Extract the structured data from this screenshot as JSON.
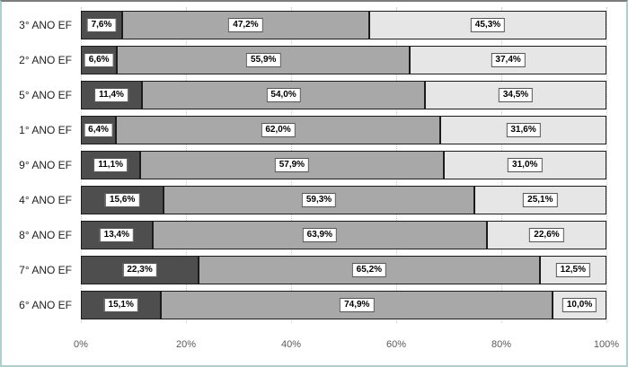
{
  "chart_data": {
    "type": "bar",
    "orientation": "horizontal-stacked",
    "title": "",
    "legend": "none",
    "grid": "vertical-dotted",
    "xlim": [
      0,
      100
    ],
    "x_ticks": [
      "0%",
      "20%",
      "40%",
      "60%",
      "80%",
      "100%"
    ],
    "categories": [
      "3° ANO EF",
      "2° ANO EF",
      "5° ANO EF",
      "1° ANO EF",
      "9° ANO EF",
      "4° ANO EF",
      "8° ANO EF",
      "7° ANO EF",
      "6° ANO EF"
    ],
    "series": [
      {
        "color": "#4e4e4e",
        "values": [
          7.6,
          6.6,
          11.4,
          6.4,
          11.1,
          15.6,
          13.4,
          22.3,
          15.1
        ],
        "labels": [
          "7,6%",
          "6,6%",
          "11,4%",
          "6,4%",
          "11,1%",
          "15,6%",
          "13,4%",
          "22,3%",
          "15,1%"
        ]
      },
      {
        "color": "#a8a8a8",
        "values": [
          47.2,
          55.9,
          54.0,
          62.0,
          57.9,
          59.3,
          63.9,
          65.2,
          74.9
        ],
        "labels": [
          "47,2%",
          "55,9%",
          "54,0%",
          "62,0%",
          "57,9%",
          "59,3%",
          "63,9%",
          "65,2%",
          "74,9%"
        ]
      },
      {
        "color": "#e6e6e6",
        "values": [
          45.3,
          37.4,
          34.5,
          31.6,
          31.0,
          25.1,
          22.6,
          12.5,
          10.0
        ],
        "labels": [
          "45,3%",
          "37,4%",
          "34,5%",
          "31,6%",
          "31,0%",
          "25,1%",
          "22,6%",
          "12,5%",
          "10,0%"
        ]
      }
    ]
  }
}
